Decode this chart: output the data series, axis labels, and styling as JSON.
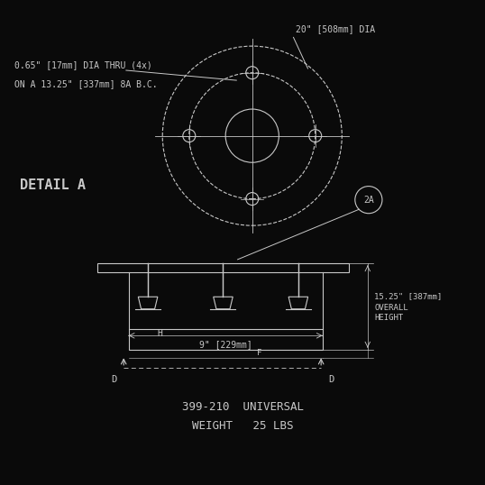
{
  "bg_color": "#0a0a0a",
  "fg_color": "#c8c8c8",
  "title_text": "399-210  UNIVERSAL\nWEIGHT   25 LBS",
  "detail_label": "DETAIL A",
  "label_2A": "2A",
  "top_label1": "0.65\" [17mm] DIA THRU (4x)",
  "top_label2": "ON A 13.25\" [337mm] 8A B.C.",
  "top_label3": "20\" [508mm] DIA",
  "dim_label1": "15.25\" [387mm]",
  "dim_label2": "OVERALL",
  "dim_label3": "HEIGHT",
  "dim_label4": "9\" [229mm]",
  "dim_H": "H",
  "dim_D": "D",
  "font_size_main": 7.5,
  "font_size_small": 7.0,
  "font_size_title": 9,
  "font_size_detail": 11,
  "line_width": 0.8,
  "dashed_lw": 0.6
}
